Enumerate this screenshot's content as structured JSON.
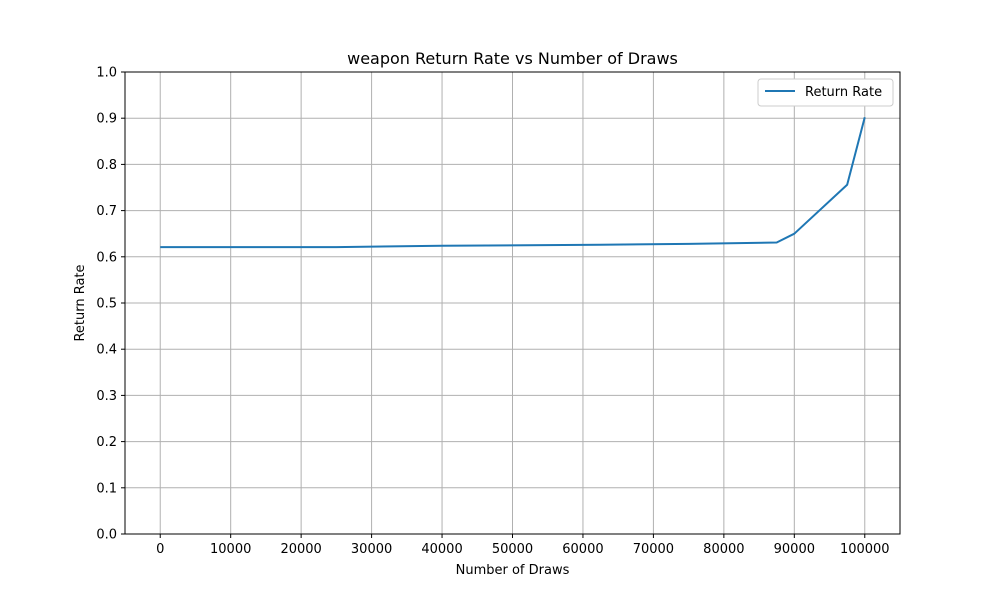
{
  "chart_data": {
    "type": "line",
    "title": "weapon Return Rate vs Number of Draws",
    "xlabel": "Number of Draws",
    "ylabel": "Return Rate",
    "xlim": [
      -5000,
      105000
    ],
    "ylim": [
      0.0,
      1.0
    ],
    "xticks": [
      0,
      10000,
      20000,
      30000,
      40000,
      50000,
      60000,
      70000,
      80000,
      90000,
      100000
    ],
    "yticks": [
      0.0,
      0.1,
      0.2,
      0.3,
      0.4,
      0.5,
      0.6,
      0.7,
      0.8,
      0.9,
      1.0
    ],
    "xtick_labels": [
      "0",
      "10000",
      "20000",
      "30000",
      "40000",
      "50000",
      "60000",
      "70000",
      "80000",
      "90000",
      "100000"
    ],
    "ytick_labels": [
      "0.0",
      "0.1",
      "0.2",
      "0.3",
      "0.4",
      "0.5",
      "0.6",
      "0.7",
      "0.8",
      "0.9",
      "1.0"
    ],
    "grid": true,
    "legend": "top-right",
    "series": [
      {
        "name": "Return Rate",
        "color": "#1f77b4",
        "x": [
          0,
          25000,
          40000,
          62500,
          75000,
          87500,
          90000,
          97500,
          100000
        ],
        "y": [
          0.621,
          0.621,
          0.624,
          0.626,
          0.628,
          0.631,
          0.65,
          0.756,
          0.902
        ]
      }
    ]
  }
}
